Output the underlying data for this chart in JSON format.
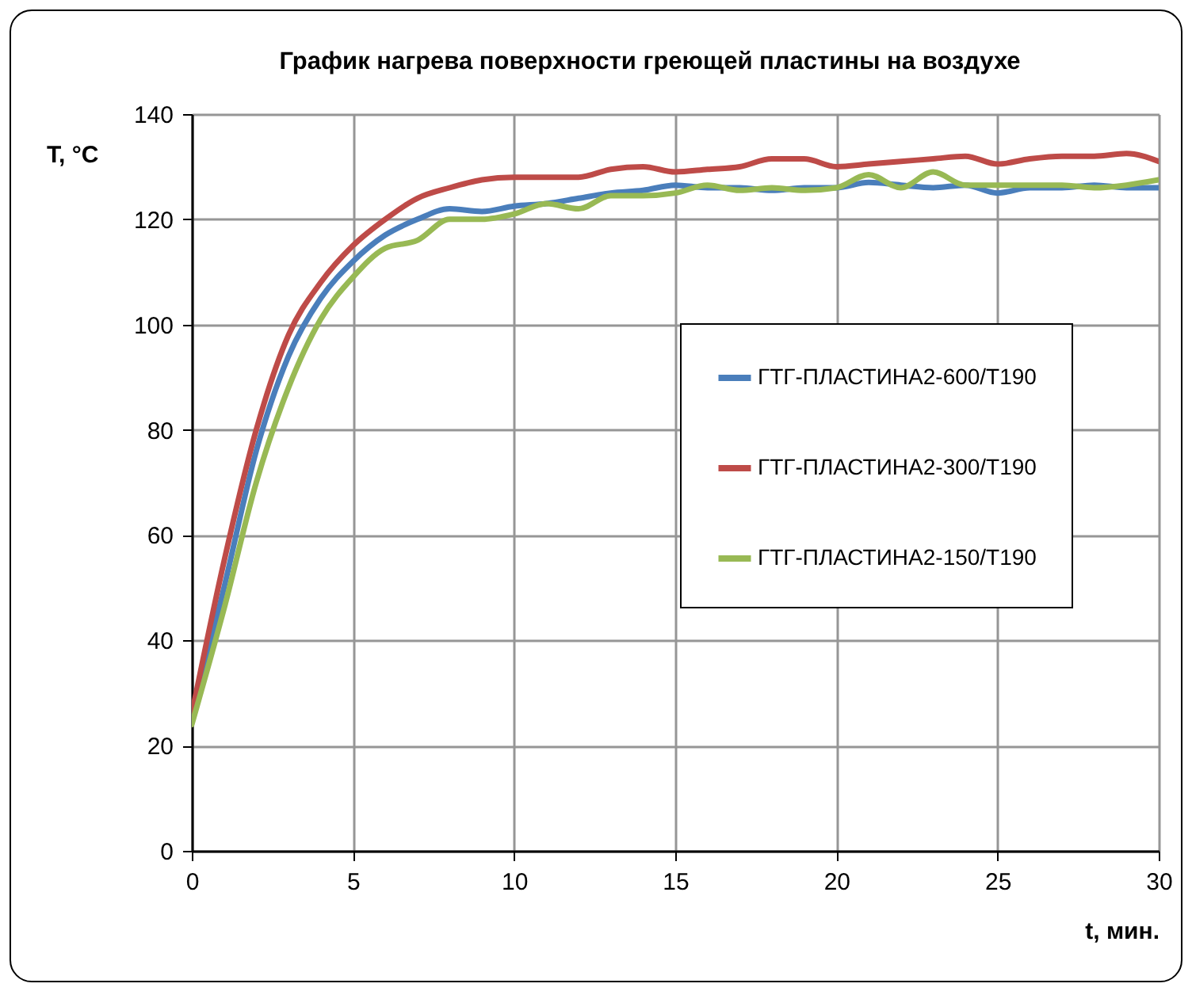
{
  "chart_data": {
    "type": "line",
    "title": "График нагрева поверхности греющей пластины на воздухе",
    "xlabel": "t, мин.",
    "ylabel": "T, °C",
    "x": [
      0,
      1,
      2,
      3,
      4,
      5,
      6,
      7,
      8,
      9,
      10,
      11,
      12,
      13,
      14,
      15,
      16,
      17,
      18,
      19,
      20,
      21,
      22,
      23,
      24,
      25,
      26,
      27,
      28,
      29,
      30
    ],
    "series": [
      {
        "name": "ГТГ-ПЛАСТИНА2-600/Т190",
        "color": "#4a7ebb",
        "values": [
          25,
          50,
          76,
          94,
          105,
          112,
          117,
          120,
          122,
          121.5,
          122.5,
          123,
          124,
          125,
          125.5,
          126.5,
          126,
          126,
          125.5,
          126,
          126,
          127,
          126.5,
          126,
          126.5,
          125,
          126,
          126,
          126.5,
          126,
          126
        ]
      },
      {
        "name": "ГТГ-ПЛАСТИНА2-300/Т190",
        "color": "#be4b48",
        "values": [
          26,
          55,
          80,
          98,
          108,
          115,
          120,
          124,
          126,
          127.5,
          128,
          128,
          128,
          129.5,
          130,
          129,
          129.5,
          130,
          131.5,
          131.5,
          130,
          130.5,
          131,
          131.5,
          132,
          130.5,
          131.5,
          132,
          132,
          132.5,
          131
        ]
      },
      {
        "name": "ГТГ-ПЛАСТИНА2-150/Т190",
        "color": "#98b954",
        "values": [
          24,
          46,
          70,
          88,
          101,
          109,
          114.5,
          116,
          120,
          120,
          121,
          123,
          122,
          124.5,
          124.5,
          125,
          126.5,
          125.5,
          126,
          125.5,
          126,
          128.5,
          126,
          129,
          126.5,
          126.5,
          126.5,
          126.5,
          126,
          126.5,
          127.5
        ]
      }
    ],
    "xlim": [
      0,
      30
    ],
    "xticks": [
      0,
      5,
      10,
      15,
      20,
      25,
      30
    ],
    "ylim": [
      0,
      140
    ],
    "yticks": [
      0,
      20,
      40,
      60,
      80,
      100,
      120,
      140
    ],
    "grid": true,
    "legend": "right",
    "marker": "none",
    "line_style": "solid"
  }
}
